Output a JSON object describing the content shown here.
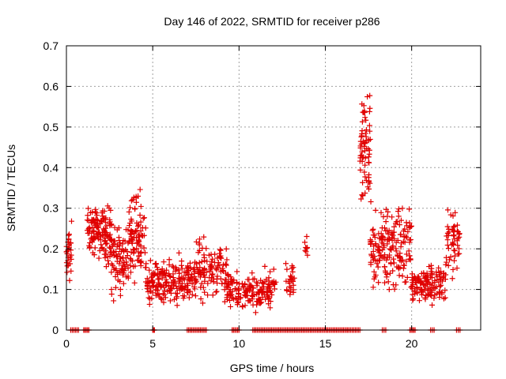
{
  "chart_data": {
    "type": "scatter",
    "title": "Day 146 of 2022, SRMTID for receiver p286",
    "xlabel": "GPS time / hours",
    "ylabel": "SRMTID / TECUs",
    "xlim": [
      0,
      24
    ],
    "ylim": [
      0,
      0.7
    ],
    "xticks": [
      "0",
      "5",
      "10",
      "15",
      "20"
    ],
    "xtick_values": [
      0,
      5,
      10,
      15,
      20
    ],
    "yticks": [
      "0",
      "0.1",
      "0.2",
      "0.3",
      "0.4",
      "0.5",
      "0.6",
      "0.7"
    ],
    "ytick_values": [
      0,
      0.1,
      0.2,
      0.3,
      0.4,
      0.5,
      0.6,
      0.7
    ],
    "grid": true,
    "marker": "+",
    "color": "#e00000",
    "clusters": [
      {
        "x_range": [
          0.0,
          0.3
        ],
        "y_center": 0.2,
        "y_spread": 0.09,
        "count": 30
      },
      {
        "x_range": [
          1.2,
          2.6
        ],
        "y_center": 0.24,
        "y_spread": 0.08,
        "count": 130
      },
      {
        "x_range": [
          2.6,
          3.6
        ],
        "y_center": 0.17,
        "y_spread": 0.09,
        "count": 90
      },
      {
        "x_range": [
          3.6,
          4.6
        ],
        "y_center": 0.23,
        "y_spread": 0.11,
        "count": 90
      },
      {
        "x_range": [
          4.6,
          7.5
        ],
        "y_center": 0.12,
        "y_spread": 0.06,
        "count": 200
      },
      {
        "x_range": [
          7.5,
          9.3
        ],
        "y_center": 0.15,
        "y_spread": 0.08,
        "count": 110
      },
      {
        "x_range": [
          9.3,
          12.2
        ],
        "y_center": 0.1,
        "y_spread": 0.05,
        "count": 170
      },
      {
        "x_range": [
          12.7,
          13.2
        ],
        "y_center": 0.12,
        "y_spread": 0.05,
        "count": 25
      },
      {
        "x_range": [
          13.8,
          14.0
        ],
        "y_center": 0.21,
        "y_spread": 0.04,
        "count": 8
      },
      {
        "x_range": [
          17.0,
          17.6
        ],
        "y_center": 0.45,
        "y_spread": 0.16,
        "count": 70
      },
      {
        "x_range": [
          17.6,
          18.5
        ],
        "y_center": 0.2,
        "y_spread": 0.1,
        "count": 70
      },
      {
        "x_range": [
          18.5,
          20.0
        ],
        "y_center": 0.2,
        "y_spread": 0.1,
        "count": 110
      },
      {
        "x_range": [
          20.0,
          22.0
        ],
        "y_center": 0.11,
        "y_spread": 0.05,
        "count": 140
      },
      {
        "x_range": [
          22.0,
          22.8
        ],
        "y_center": 0.22,
        "y_spread": 0.08,
        "count": 50
      }
    ],
    "zero_value_ranges": [
      [
        0.25,
        0.7
      ],
      [
        1.0,
        1.3
      ],
      [
        5.0,
        5.1
      ],
      [
        7.0,
        8.1
      ],
      [
        9.6,
        10.0
      ],
      [
        10.8,
        16.3
      ],
      [
        16.3,
        17.0
      ],
      [
        18.3,
        18.5
      ],
      [
        19.9,
        20.2
      ],
      [
        21.1,
        21.3
      ],
      [
        22.6,
        22.8
      ]
    ]
  }
}
